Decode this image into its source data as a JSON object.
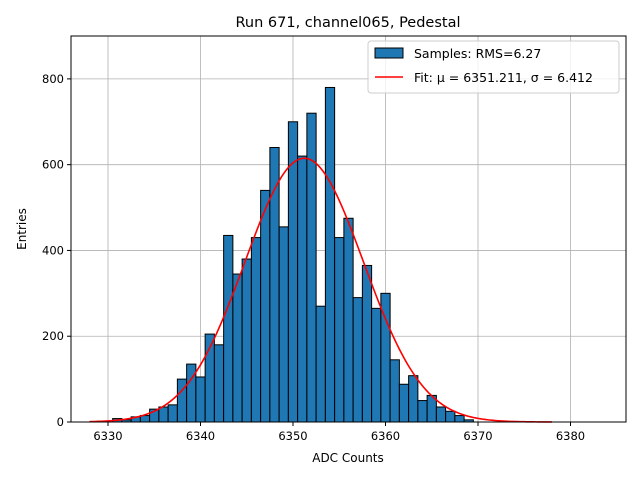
{
  "chart_data": {
    "type": "bar",
    "title": "Run 671, channel065, Pedestal",
    "xlabel": "ADC Counts",
    "ylabel": "Entries",
    "xlim": [
      6326,
      6386
    ],
    "ylim": [
      0,
      900
    ],
    "xticks": [
      6330,
      6340,
      6350,
      6360,
      6370,
      6380
    ],
    "yticks": [
      0,
      200,
      400,
      600,
      800
    ],
    "grid": true,
    "legend_position": "top-right",
    "bin_width": 1,
    "bins": [
      {
        "x": 6331,
        "count": 8
      },
      {
        "x": 6332,
        "count": 5
      },
      {
        "x": 6333,
        "count": 12
      },
      {
        "x": 6334,
        "count": 15
      },
      {
        "x": 6335,
        "count": 30
      },
      {
        "x": 6336,
        "count": 35
      },
      {
        "x": 6337,
        "count": 40
      },
      {
        "x": 6338,
        "count": 100
      },
      {
        "x": 6339,
        "count": 135
      },
      {
        "x": 6340,
        "count": 105
      },
      {
        "x": 6341,
        "count": 205
      },
      {
        "x": 6342,
        "count": 180
      },
      {
        "x": 6343,
        "count": 435
      },
      {
        "x": 6344,
        "count": 345
      },
      {
        "x": 6345,
        "count": 380
      },
      {
        "x": 6346,
        "count": 430
      },
      {
        "x": 6347,
        "count": 540
      },
      {
        "x": 6348,
        "count": 640
      },
      {
        "x": 6349,
        "count": 455
      },
      {
        "x": 6350,
        "count": 700
      },
      {
        "x": 6351,
        "count": 620
      },
      {
        "x": 6352,
        "count": 720
      },
      {
        "x": 6353,
        "count": 270
      },
      {
        "x": 6354,
        "count": 780
      },
      {
        "x": 6355,
        "count": 430
      },
      {
        "x": 6356,
        "count": 475
      },
      {
        "x": 6357,
        "count": 290
      },
      {
        "x": 6358,
        "count": 365
      },
      {
        "x": 6359,
        "count": 265
      },
      {
        "x": 6360,
        "count": 300
      },
      {
        "x": 6361,
        "count": 145
      },
      {
        "x": 6362,
        "count": 88
      },
      {
        "x": 6363,
        "count": 108
      },
      {
        "x": 6364,
        "count": 50
      },
      {
        "x": 6365,
        "count": 62
      },
      {
        "x": 6366,
        "count": 35
      },
      {
        "x": 6367,
        "count": 25
      },
      {
        "x": 6368,
        "count": 15
      },
      {
        "x": 6369,
        "count": 5
      }
    ],
    "fit": {
      "mu": 6351.211,
      "sigma": 6.412,
      "amplitude": 615,
      "x_range": [
        6328,
        6378
      ]
    },
    "series": [
      {
        "name": "Samples: RMS=6.27",
        "kind": "histogram",
        "color": "#1f77b4"
      },
      {
        "name": "Fit: μ = 6351.211, σ = 6.412",
        "kind": "line",
        "color": "#ff0000"
      }
    ]
  }
}
